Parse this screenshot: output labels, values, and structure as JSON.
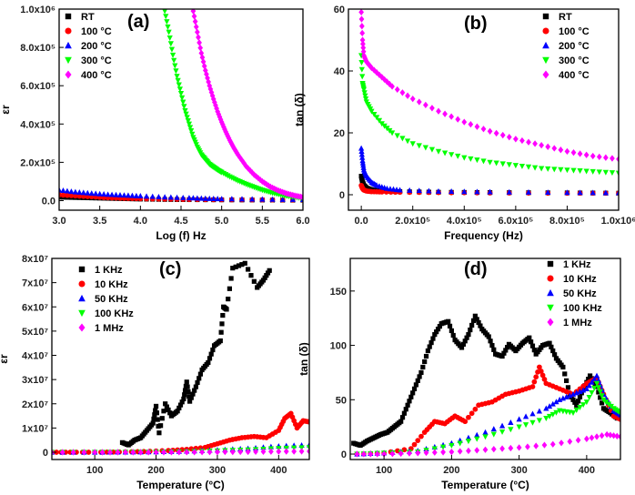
{
  "chart_data": [
    {
      "type": "scatter",
      "panel_label": "(a)",
      "xlabel": "Log (f) Hz",
      "ylabel": "εr",
      "xlim": [
        3.0,
        6.0
      ],
      "ylim": [
        -50000,
        1000000
      ],
      "xticks": [
        {
          "v": 3.0,
          "t": "3.0"
        },
        {
          "v": 3.5,
          "t": "3.5"
        },
        {
          "v": 4.0,
          "t": "4.0"
        },
        {
          "v": 4.5,
          "t": "4.5"
        },
        {
          "v": 5.0,
          "t": "5.0"
        },
        {
          "v": 5.5,
          "t": "5.5"
        },
        {
          "v": 6.0,
          "t": "6.0"
        }
      ],
      "yticks": [
        {
          "v": 0,
          "t": "0.0"
        },
        {
          "v": 200000,
          "t": "2.0x10⁵"
        },
        {
          "v": 400000,
          "t": "4.0x10⁵"
        },
        {
          "v": 600000,
          "t": "6.0x10⁵"
        },
        {
          "v": 800000,
          "t": "8.0x10⁵"
        },
        {
          "v": 1000000,
          "t": "1.0x10⁶"
        }
      ],
      "legend_position": "top-left",
      "series": [
        {
          "name": "RT",
          "color": "#000000",
          "marker": "square",
          "x": [
            3.0,
            3.2,
            3.4,
            3.6,
            3.8,
            4.0,
            4.3,
            4.6,
            5.0,
            5.5,
            6.0
          ],
          "y": [
            18000,
            16000,
            14000,
            12000,
            10000,
            8000,
            6000,
            5000,
            4000,
            3000,
            2000
          ]
        },
        {
          "name": "100 °C",
          "color": "#ff0000",
          "marker": "circle",
          "x": [
            3.0,
            3.2,
            3.4,
            3.6,
            3.8,
            4.0,
            4.3,
            4.6,
            5.0,
            5.5,
            6.0
          ],
          "y": [
            30000,
            25000,
            20000,
            15000,
            12000,
            10000,
            8000,
            6000,
            5000,
            4000,
            3000
          ]
        },
        {
          "name": "200 °C",
          "color": "#0000ff",
          "marker": "triangle-up",
          "x": [
            3.0,
            3.2,
            3.4,
            3.6,
            3.8,
            4.0,
            4.3,
            4.6,
            4.8,
            5.0,
            5.5,
            6.0
          ],
          "y": [
            55000,
            45000,
            38000,
            32000,
            28000,
            24000,
            18000,
            14000,
            11000,
            9000,
            7000,
            5000
          ]
        },
        {
          "name": "300 °C",
          "color": "#00ff00",
          "marker": "triangle-down",
          "x": [
            4.3,
            4.35,
            4.4,
            4.45,
            4.5,
            4.55,
            4.6,
            4.65,
            4.7,
            4.75,
            4.8,
            4.85,
            4.9,
            4.95,
            5.0,
            5.1,
            5.2,
            5.3,
            5.4,
            5.5,
            5.6,
            5.7,
            5.8,
            5.9,
            6.0
          ],
          "y": [
            990000,
            880000,
            760000,
            650000,
            560000,
            470000,
            400000,
            330000,
            280000,
            240000,
            215000,
            190000,
            175000,
            160000,
            148000,
            125000,
            104000,
            86000,
            70000,
            55000,
            43000,
            33000,
            24000,
            18000,
            12000
          ]
        },
        {
          "name": "400 °C",
          "color": "#ff00ff",
          "marker": "diamond",
          "x": [
            4.65,
            4.7,
            4.75,
            4.8,
            4.85,
            4.9,
            4.95,
            5.0,
            5.05,
            5.1,
            5.15,
            5.2,
            5.3,
            5.4,
            5.5,
            5.6,
            5.7,
            5.8,
            5.9,
            6.0
          ],
          "y": [
            990000,
            880000,
            770000,
            680000,
            600000,
            530000,
            465000,
            410000,
            360000,
            315000,
            275000,
            240000,
            180000,
            135000,
            100000,
            72000,
            52000,
            37000,
            26000,
            18000
          ]
        }
      ]
    },
    {
      "type": "scatter",
      "panel_label": "(b)",
      "xlabel": "Frequency (Hz)",
      "ylabel": "tan (δ)",
      "xlim": [
        -50000,
        1000000
      ],
      "ylim": [
        -5,
        60
      ],
      "xticks": [
        {
          "v": 0,
          "t": "0.0"
        },
        {
          "v": 200000,
          "t": "2.0x10⁵"
        },
        {
          "v": 400000,
          "t": "4.0x10⁵"
        },
        {
          "v": 600000,
          "t": "6.0x10⁵"
        },
        {
          "v": 800000,
          "t": "8.0x10⁵"
        },
        {
          "v": 1000000,
          "t": "1.0x10⁶"
        }
      ],
      "yticks": [
        {
          "v": 0,
          "t": "0"
        },
        {
          "v": 20,
          "t": "20"
        },
        {
          "v": 40,
          "t": "40"
        },
        {
          "v": 60,
          "t": "60"
        }
      ],
      "legend_position": "top-right",
      "series": [
        {
          "name": "RT",
          "color": "#000000",
          "marker": "square",
          "x": [
            0,
            5000,
            10000,
            20000,
            40000,
            80000,
            150000,
            300000,
            500000,
            800000,
            1000000
          ],
          "y": [
            6,
            4,
            3,
            2.2,
            1.6,
            1.2,
            1,
            0.8,
            0.7,
            0.6,
            0.5
          ]
        },
        {
          "name": "100 °C",
          "color": "#ff0000",
          "marker": "circle",
          "x": [
            0,
            5000,
            10000,
            20000,
            40000,
            80000,
            150000,
            300000,
            500000,
            800000,
            1000000
          ],
          "y": [
            3,
            2,
            1.5,
            1.2,
            1,
            0.9,
            0.8,
            0.7,
            0.6,
            0.5,
            0.5
          ]
        },
        {
          "name": "200 °C",
          "color": "#0000ff",
          "marker": "triangle-up",
          "x": [
            0,
            5000,
            10000,
            20000,
            40000,
            60000,
            100000,
            150000,
            300000,
            500000,
            800000,
            1000000
          ],
          "y": [
            15,
            11,
            8,
            6,
            4,
            3,
            2,
            1.5,
            1.1,
            0.9,
            0.7,
            0.6
          ]
        },
        {
          "name": "300 °C",
          "color": "#00ff00",
          "marker": "triangle-down",
          "x": [
            0,
            5000,
            10000,
            20000,
            40000,
            80000,
            120000,
            200000,
            300000,
            400000,
            500000,
            600000,
            700000,
            800000,
            900000,
            1000000
          ],
          "y": [
            45,
            36,
            34,
            30,
            27,
            23,
            20,
            16.5,
            14,
            12,
            10.5,
            9.5,
            8.5,
            8,
            7.5,
            7
          ]
        },
        {
          "name": "400 °C",
          "color": "#ff00ff",
          "marker": "diamond",
          "x": [
            0,
            5000,
            10000,
            20000,
            40000,
            80000,
            120000,
            200000,
            300000,
            400000,
            500000,
            600000,
            700000,
            800000,
            900000,
            1000000
          ],
          "y": [
            59,
            50,
            45,
            43,
            41,
            38,
            35,
            31,
            27,
            23.5,
            20.5,
            18,
            16,
            14,
            12.5,
            11.5
          ]
        }
      ]
    },
    {
      "type": "scatter",
      "panel_label": "(c)",
      "xlabel": "Temperature (°C)",
      "ylabel": "εr",
      "xlim": [
        30,
        450
      ],
      "ylim": [
        -3000000,
        80000000
      ],
      "xticks": [
        {
          "v": 100,
          "t": "100"
        },
        {
          "v": 200,
          "t": "200"
        },
        {
          "v": 300,
          "t": "300"
        },
        {
          "v": 400,
          "t": "400"
        }
      ],
      "yticks": [
        {
          "v": 0,
          "t": "0"
        },
        {
          "v": 10000000,
          "t": "1x10⁷"
        },
        {
          "v": 20000000,
          "t": "2x10⁷"
        },
        {
          "v": 30000000,
          "t": "3x10⁷"
        },
        {
          "v": 40000000,
          "t": "4x10⁷"
        },
        {
          "v": 50000000,
          "t": "5x10⁷"
        },
        {
          "v": 60000000,
          "t": "6x10⁷"
        },
        {
          "v": 70000000,
          "t": "7x10⁷"
        },
        {
          "v": 80000000,
          "t": "8x10⁷"
        }
      ],
      "legend_position": "top-left",
      "series": [
        {
          "name": "1 KHz",
          "color": "#000000",
          "marker": "square",
          "x": [
            145,
            155,
            165,
            175,
            185,
            195,
            200,
            205,
            215,
            225,
            235,
            245,
            250,
            255,
            265,
            275,
            285,
            295,
            305,
            310,
            315,
            325,
            345,
            365,
            375,
            385
          ],
          "y": [
            4000000,
            3000000,
            5000000,
            6000000,
            9000000,
            12000000,
            19000000,
            8000000,
            20000000,
            15000000,
            17000000,
            22000000,
            29000000,
            21000000,
            27000000,
            34000000,
            37000000,
            44000000,
            46000000,
            60000000,
            59000000,
            76000000,
            78000000,
            68000000,
            71000000,
            75000000
          ]
        },
        {
          "name": "10 KHz",
          "color": "#ff0000",
          "marker": "circle",
          "x": [
            30,
            60,
            100,
            140,
            180,
            220,
            250,
            280,
            300,
            320,
            340,
            360,
            380,
            400,
            410,
            420,
            430,
            440,
            450
          ],
          "y": [
            0,
            0,
            0,
            100000,
            300000,
            700000,
            1200000,
            2000000,
            3500000,
            5000000,
            6000000,
            6500000,
            6000000,
            9000000,
            14000000,
            16000000,
            10000000,
            13000000,
            12500000
          ]
        },
        {
          "name": "50 KHz",
          "color": "#0000ff",
          "marker": "triangle-up",
          "x": [
            30,
            100,
            150,
            200,
            250,
            300,
            350,
            400,
            450
          ],
          "y": [
            0,
            0,
            50000,
            150000,
            400000,
            900000,
            1500000,
            2500000,
            3000000
          ]
        },
        {
          "name": "100 KHz",
          "color": "#00ff00",
          "marker": "triangle-down",
          "x": [
            30,
            100,
            150,
            200,
            250,
            300,
            350,
            400,
            450
          ],
          "y": [
            0,
            0,
            30000,
            100000,
            250000,
            600000,
            1000000,
            1600000,
            2000000
          ]
        },
        {
          "name": "1 MHz",
          "color": "#ff00ff",
          "marker": "diamond",
          "x": [
            30,
            100,
            150,
            200,
            250,
            300,
            350,
            400,
            450
          ],
          "y": [
            0,
            0,
            0,
            20000,
            60000,
            120000,
            200000,
            300000,
            400000
          ]
        }
      ]
    },
    {
      "type": "scatter",
      "panel_label": "(d)",
      "xlabel": "Temperature (°C)",
      "ylabel": "tan (δ)",
      "xlim": [
        50,
        450
      ],
      "ylim": [
        -5,
        180
      ],
      "xticks": [
        {
          "v": 100,
          "t": "100"
        },
        {
          "v": 200,
          "t": "200"
        },
        {
          "v": 300,
          "t": "300"
        },
        {
          "v": 400,
          "t": "400"
        }
      ],
      "yticks": [
        {
          "v": 0,
          "t": "0"
        },
        {
          "v": 50,
          "t": "50"
        },
        {
          "v": 100,
          "t": "100"
        },
        {
          "v": 150,
          "t": "150"
        }
      ],
      "legend_position": "top-right",
      "series": [
        {
          "name": "1 KHz",
          "color": "#000000",
          "marker": "square",
          "x": [
            55,
            65,
            75,
            85,
            95,
            105,
            115,
            125,
            135,
            145,
            155,
            165,
            175,
            185,
            195,
            205,
            215,
            225,
            235,
            245,
            255,
            265,
            275,
            285,
            295,
            305,
            315,
            325,
            335,
            345,
            355,
            365,
            375,
            385,
            395,
            405,
            415,
            425,
            435,
            445
          ],
          "y": [
            10,
            8,
            12,
            15,
            18,
            20,
            25,
            30,
            45,
            60,
            75,
            95,
            110,
            120,
            122,
            105,
            98,
            110,
            127,
            115,
            108,
            92,
            90,
            101,
            95,
            102,
            107,
            92,
            100,
            102,
            88,
            80,
            55,
            45,
            60,
            72,
            62,
            42,
            38,
            33
          ]
        },
        {
          "name": "10 KHz",
          "color": "#ff0000",
          "marker": "circle",
          "x": [
            60,
            100,
            140,
            160,
            175,
            190,
            205,
            220,
            240,
            260,
            280,
            300,
            320,
            330,
            340,
            360,
            380,
            400,
            415,
            425,
            440,
            450
          ],
          "y": [
            0,
            1,
            5,
            20,
            30,
            28,
            35,
            30,
            45,
            48,
            55,
            58,
            62,
            80,
            65,
            60,
            55,
            65,
            70,
            55,
            35,
            32
          ]
        },
        {
          "name": "50 KHz",
          "color": "#0000ff",
          "marker": "triangle-up",
          "x": [
            60,
            100,
            150,
            200,
            250,
            300,
            340,
            360,
            380,
            400,
            415,
            425,
            440,
            450
          ],
          "y": [
            0,
            1,
            3,
            10,
            20,
            32,
            42,
            50,
            55,
            60,
            72,
            55,
            40,
            36
          ]
        },
        {
          "name": "100 KHz",
          "color": "#00ff00",
          "marker": "triangle-down",
          "x": [
            60,
            100,
            150,
            200,
            250,
            300,
            340,
            360,
            380,
            400,
            415,
            425,
            440,
            450
          ],
          "y": [
            0,
            1,
            2,
            8,
            16,
            25,
            33,
            40,
            38,
            48,
            65,
            50,
            42,
            38
          ]
        },
        {
          "name": "1 MHz",
          "color": "#ff00ff",
          "marker": "diamond",
          "x": [
            60,
            100,
            150,
            200,
            250,
            300,
            350,
            400,
            430,
            450
          ],
          "y": [
            0,
            0,
            1,
            2,
            4,
            6,
            9,
            14,
            18,
            16
          ]
        }
      ]
    }
  ]
}
